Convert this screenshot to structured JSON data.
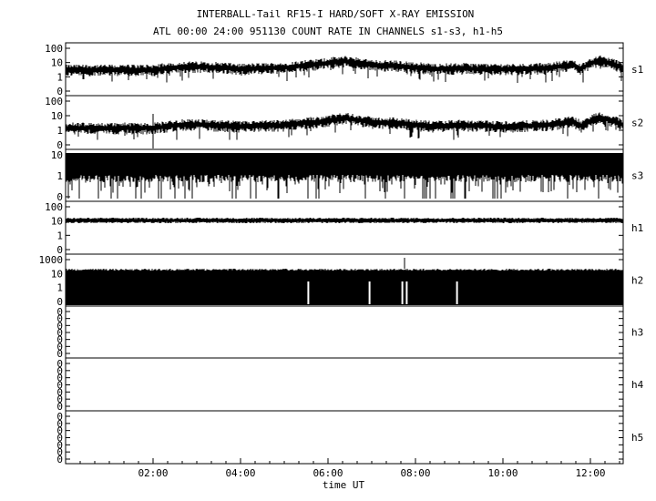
{
  "title": "INTERBALL-Tail RF15-I HARD/SOFT X-RAY EMISSION",
  "subtitle": "ATL 00:00 24:00 951130  COUNT RATE IN CHANNELS s1-s3, h1-h5",
  "chart_data": {
    "type": "line",
    "xlabel": "time UT",
    "x_ticks": [
      "02:00",
      "04:00",
      "06:00",
      "08:00",
      "10:00",
      "12:00"
    ],
    "x_tick_hours": [
      2,
      4,
      6,
      8,
      10,
      12
    ],
    "xlim_hours": [
      0,
      12.75
    ],
    "y_scale": "log",
    "grid": false,
    "panels": [
      {
        "name": "s1",
        "ytick_labels": [
          "100",
          "10",
          "1",
          "0"
        ],
        "profile": [
          [
            0,
            8
          ],
          [
            1,
            8
          ],
          [
            2,
            8
          ],
          [
            2.8,
            13
          ],
          [
            3.4,
            12
          ],
          [
            4,
            9
          ],
          [
            5,
            11
          ],
          [
            5.8,
            18
          ],
          [
            6.4,
            28
          ],
          [
            7,
            16
          ],
          [
            7.6,
            14
          ],
          [
            8.4,
            9
          ],
          [
            9,
            10
          ],
          [
            10,
            9
          ],
          [
            11,
            10
          ],
          [
            11.6,
            16
          ],
          [
            11.8,
            9
          ],
          [
            12.2,
            30
          ],
          [
            12.75,
            10
          ]
        ]
      },
      {
        "name": "s2",
        "ytick_labels": [
          "100",
          "10",
          "1",
          "0"
        ],
        "profile": [
          [
            0,
            4
          ],
          [
            1,
            4
          ],
          [
            2,
            4
          ],
          [
            2.8,
            7
          ],
          [
            3.4,
            6
          ],
          [
            4,
            5
          ],
          [
            5,
            6
          ],
          [
            5.8,
            10
          ],
          [
            6.4,
            16
          ],
          [
            7,
            9
          ],
          [
            7.6,
            8
          ],
          [
            8.4,
            5
          ],
          [
            9,
            6
          ],
          [
            10,
            5
          ],
          [
            11,
            6
          ],
          [
            11.6,
            10
          ],
          [
            11.8,
            5
          ],
          [
            12.2,
            18
          ],
          [
            12.75,
            6
          ]
        ]
      },
      {
        "name": "s3",
        "ytick_labels": [
          "10",
          "1",
          "0"
        ],
        "profile": [
          [
            0,
            1.5
          ],
          [
            12.75,
            1.5
          ]
        ]
      },
      {
        "name": "h1",
        "ytick_labels": [
          "100",
          "10",
          "1",
          "0"
        ],
        "profile": [
          [
            0,
            25
          ],
          [
            12.75,
            25
          ]
        ]
      },
      {
        "name": "h2",
        "ytick_labels": [
          "1000",
          "10",
          "1",
          "0"
        ],
        "profile": [
          [
            0,
            150
          ],
          [
            12.75,
            150
          ]
        ]
      },
      {
        "name": "h3",
        "ytick_labels": [
          "0",
          "0",
          "0",
          "0",
          "0",
          "0",
          "0"
        ],
        "profile": []
      },
      {
        "name": "h4",
        "ytick_labels": [
          "0",
          "0",
          "0",
          "0",
          "0",
          "0",
          "0"
        ],
        "profile": []
      },
      {
        "name": "h5",
        "ytick_labels": [
          "0",
          "0",
          "0",
          "0",
          "0",
          "0",
          "0"
        ],
        "profile": []
      }
    ]
  }
}
